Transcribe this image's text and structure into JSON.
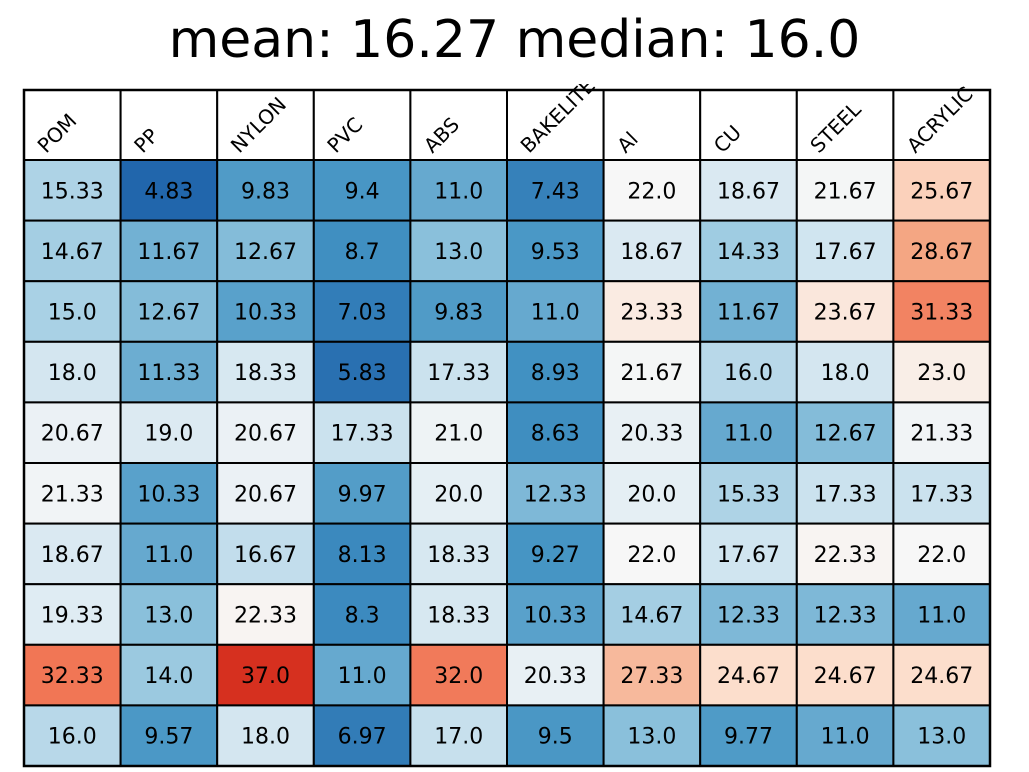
{
  "chart_data": {
    "type": "heatmap",
    "title": "mean: 16.27 median: 16.0",
    "columns": [
      "POM",
      "PP",
      "NYLON",
      "PVC",
      "ABS",
      "BAKELITE",
      "Al",
      "CU",
      "STEEL",
      "ACRYLIC"
    ],
    "values": [
      [
        "15.33",
        "4.83",
        "9.83",
        "9.4",
        "11.0",
        "7.43",
        "22.0",
        "18.67",
        "21.67",
        "25.67"
      ],
      [
        "14.67",
        "11.67",
        "12.67",
        "8.7",
        "13.0",
        "9.53",
        "18.67",
        "14.33",
        "17.67",
        "28.67"
      ],
      [
        "15.0",
        "12.67",
        "10.33",
        "7.03",
        "9.83",
        "11.0",
        "23.33",
        "11.67",
        "23.67",
        "31.33"
      ],
      [
        "18.0",
        "11.33",
        "18.33",
        "5.83",
        "17.33",
        "8.93",
        "21.67",
        "16.0",
        "18.0",
        "23.0"
      ],
      [
        "20.67",
        "19.0",
        "20.67",
        "17.33",
        "21.0",
        "8.63",
        "20.33",
        "11.0",
        "12.67",
        "21.33"
      ],
      [
        "21.33",
        "10.33",
        "20.67",
        "9.97",
        "20.0",
        "12.33",
        "20.0",
        "15.33",
        "17.33",
        "17.33"
      ],
      [
        "18.67",
        "11.0",
        "16.67",
        "8.13",
        "18.33",
        "9.27",
        "22.0",
        "17.67",
        "22.33",
        "22.0"
      ],
      [
        "19.33",
        "13.0",
        "22.33",
        "8.3",
        "18.33",
        "10.33",
        "14.67",
        "12.33",
        "12.33",
        "11.0"
      ],
      [
        "32.33",
        "14.0",
        "37.0",
        "11.0",
        "32.0",
        "20.33",
        "27.33",
        "24.67",
        "24.67",
        "24.67"
      ],
      [
        "16.0",
        "9.57",
        "18.0",
        "6.97",
        "17.0",
        "9.5",
        "13.0",
        "9.77",
        "11.0",
        "13.0"
      ]
    ],
    "colormap": "RdBu_r",
    "color_center": 22.0,
    "color_range": [
      4.83,
      37.0
    ],
    "colors": {
      "low": "#2166ac",
      "mid": "#f7f7f7",
      "high": "#d6301f",
      "grid": "#000000"
    }
  }
}
